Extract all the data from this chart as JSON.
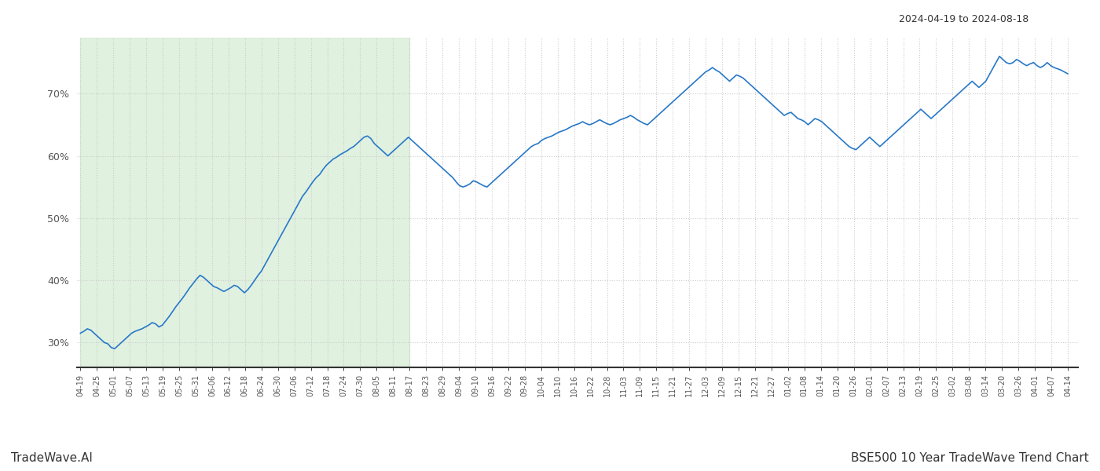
{
  "title_right": "2024-04-19 to 2024-08-18",
  "footer_left": "TradeWave.AI",
  "footer_right": "BSE500 10 Year TradeWave Trend Chart",
  "line_color": "#2878c8",
  "shading_color": "#c8e6c8",
  "shading_alpha": 0.55,
  "background_color": "#ffffff",
  "grid_color": "#cccccc",
  "ylim": [
    26,
    79
  ],
  "yticks": [
    30,
    40,
    50,
    60,
    70
  ],
  "x_labels": [
    "04-19",
    "04-25",
    "05-01",
    "05-07",
    "05-13",
    "05-19",
    "05-25",
    "05-31",
    "06-06",
    "06-12",
    "06-18",
    "06-24",
    "06-30",
    "07-06",
    "07-12",
    "07-18",
    "07-24",
    "07-30",
    "08-05",
    "08-11",
    "08-17",
    "08-23",
    "08-29",
    "09-04",
    "09-10",
    "09-16",
    "09-22",
    "09-28",
    "10-04",
    "10-10",
    "10-16",
    "10-22",
    "10-28",
    "11-03",
    "11-09",
    "11-15",
    "11-21",
    "11-27",
    "12-03",
    "12-09",
    "12-15",
    "12-21",
    "12-27",
    "01-02",
    "01-08",
    "01-14",
    "01-20",
    "01-26",
    "02-01",
    "02-07",
    "02-13",
    "02-19",
    "02-25",
    "03-02",
    "03-08",
    "03-14",
    "03-20",
    "03-26",
    "04-01",
    "04-07",
    "04-14"
  ],
  "shade_label_start": "04-19",
  "shade_label_end": "08-17",
  "values": [
    31.5,
    31.8,
    32.2,
    32.0,
    31.5,
    31.0,
    30.5,
    30.0,
    29.8,
    29.2,
    29.0,
    29.5,
    30.0,
    30.5,
    31.0,
    31.5,
    31.8,
    32.0,
    32.2,
    32.5,
    32.8,
    33.2,
    33.0,
    32.5,
    32.8,
    33.5,
    34.2,
    35.0,
    35.8,
    36.5,
    37.2,
    38.0,
    38.8,
    39.5,
    40.2,
    40.8,
    40.5,
    40.0,
    39.5,
    39.0,
    38.8,
    38.5,
    38.2,
    38.5,
    38.8,
    39.2,
    39.0,
    38.5,
    38.0,
    38.5,
    39.2,
    40.0,
    40.8,
    41.5,
    42.5,
    43.5,
    44.5,
    45.5,
    46.5,
    47.5,
    48.5,
    49.5,
    50.5,
    51.5,
    52.5,
    53.5,
    54.2,
    55.0,
    55.8,
    56.5,
    57.0,
    57.8,
    58.5,
    59.0,
    59.5,
    59.8,
    60.2,
    60.5,
    60.8,
    61.2,
    61.5,
    62.0,
    62.5,
    63.0,
    63.2,
    62.8,
    62.0,
    61.5,
    61.0,
    60.5,
    60.0,
    60.5,
    61.0,
    61.5,
    62.0,
    62.5,
    63.0,
    62.5,
    62.0,
    61.5,
    61.0,
    60.5,
    60.0,
    59.5,
    59.0,
    58.5,
    58.0,
    57.5,
    57.0,
    56.5,
    55.8,
    55.2,
    55.0,
    55.2,
    55.5,
    56.0,
    55.8,
    55.5,
    55.2,
    55.0,
    55.5,
    56.0,
    56.5,
    57.0,
    57.5,
    58.0,
    58.5,
    59.0,
    59.5,
    60.0,
    60.5,
    61.0,
    61.5,
    61.8,
    62.0,
    62.5,
    62.8,
    63.0,
    63.2,
    63.5,
    63.8,
    64.0,
    64.2,
    64.5,
    64.8,
    65.0,
    65.2,
    65.5,
    65.2,
    65.0,
    65.2,
    65.5,
    65.8,
    65.5,
    65.2,
    65.0,
    65.2,
    65.5,
    65.8,
    66.0,
    66.2,
    66.5,
    66.2,
    65.8,
    65.5,
    65.2,
    65.0,
    65.5,
    66.0,
    66.5,
    67.0,
    67.5,
    68.0,
    68.5,
    69.0,
    69.5,
    70.0,
    70.5,
    71.0,
    71.5,
    72.0,
    72.5,
    73.0,
    73.5,
    73.8,
    74.2,
    73.8,
    73.5,
    73.0,
    72.5,
    72.0,
    72.5,
    73.0,
    72.8,
    72.5,
    72.0,
    71.5,
    71.0,
    70.5,
    70.0,
    69.5,
    69.0,
    68.5,
    68.0,
    67.5,
    67.0,
    66.5,
    66.8,
    67.0,
    66.5,
    66.0,
    65.8,
    65.5,
    65.0,
    65.5,
    66.0,
    65.8,
    65.5,
    65.0,
    64.5,
    64.0,
    63.5,
    63.0,
    62.5,
    62.0,
    61.5,
    61.2,
    61.0,
    61.5,
    62.0,
    62.5,
    63.0,
    62.5,
    62.0,
    61.5,
    62.0,
    62.5,
    63.0,
    63.5,
    64.0,
    64.5,
    65.0,
    65.5,
    66.0,
    66.5,
    67.0,
    67.5,
    67.0,
    66.5,
    66.0,
    66.5,
    67.0,
    67.5,
    68.0,
    68.5,
    69.0,
    69.5,
    70.0,
    70.5,
    71.0,
    71.5,
    72.0,
    71.5,
    71.0,
    71.5,
    72.0,
    73.0,
    74.0,
    75.0,
    76.0,
    75.5,
    75.0,
    74.8,
    75.0,
    75.5,
    75.2,
    74.8,
    74.5,
    74.8,
    75.0,
    74.5,
    74.2,
    74.5,
    75.0,
    74.5,
    74.2,
    74.0,
    73.8,
    73.5,
    73.2
  ]
}
